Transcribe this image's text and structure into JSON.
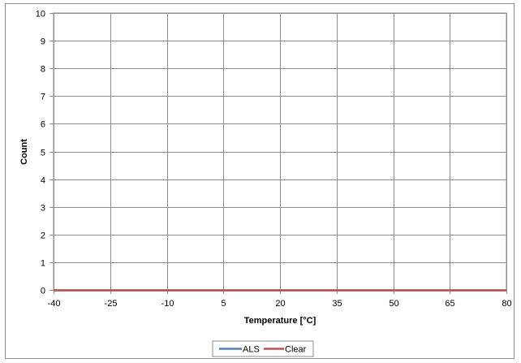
{
  "chart_data": {
    "type": "line",
    "title": "",
    "xlabel": "Temperature [°C]",
    "ylabel": "Count",
    "xlim": [
      -40,
      80
    ],
    "ylim": [
      0,
      10
    ],
    "x_ticks": [
      -40,
      -25,
      -10,
      5,
      20,
      35,
      50,
      65,
      80
    ],
    "y_ticks": [
      0,
      1,
      2,
      3,
      4,
      5,
      6,
      7,
      8,
      9,
      10
    ],
    "grid": true,
    "legend_position": "bottom",
    "x": [
      -40,
      -25,
      -10,
      5,
      20,
      35,
      50,
      65,
      80
    ],
    "series": [
      {
        "name": "ALS",
        "color": "#4f81bd",
        "values": [
          0,
          0,
          0,
          0,
          0,
          0,
          0,
          0,
          0
        ]
      },
      {
        "name": "Clear",
        "color": "#c0504d",
        "values": [
          0,
          0,
          0,
          0,
          0,
          0,
          0,
          0,
          0
        ]
      }
    ]
  }
}
